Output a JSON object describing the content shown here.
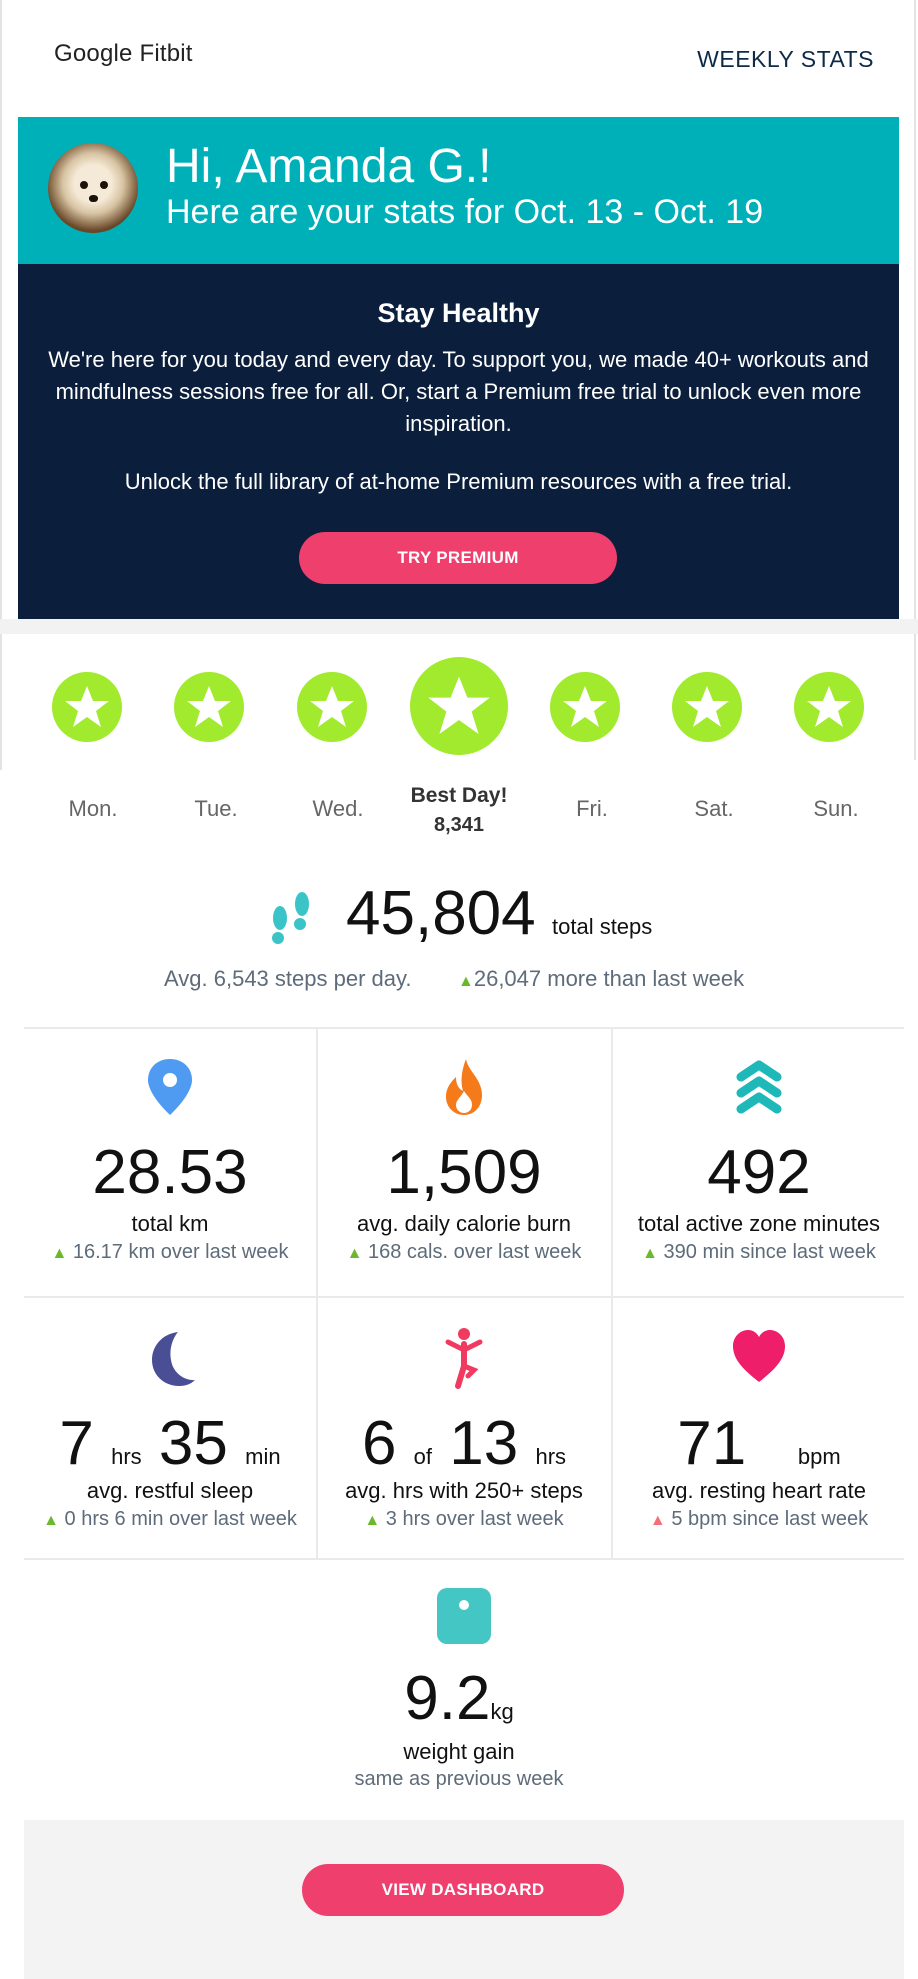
{
  "header": {
    "logo": "Google Fitbit",
    "link": "WEEKLY STATS"
  },
  "hero": {
    "greeting": "Hi, Amanda G.!",
    "subtitle": "Here are your stats for Oct. 13 - Oct. 19"
  },
  "promo": {
    "title": "Stay Healthy",
    "body": "We're here for you today and every day. To support you, we made 40+ workouts and mindfulness sessions free for all. Or, start a Premium free trial to unlock even more inspiration.",
    "body2": "Unlock the full library of at-home Premium resources with a free trial.",
    "button": "TRY PREMIUM"
  },
  "week": {
    "days": [
      "Mon.",
      "Tue.",
      "Wed.",
      "Fri.",
      "Sat.",
      "Sun."
    ],
    "best_label": "Best Day!",
    "best_value": "8,341"
  },
  "steps": {
    "total": "45,804",
    "label": "total steps",
    "avg": "Avg. 6,543 steps per day.",
    "more": "26,047 more than last week"
  },
  "stats": [
    {
      "icon": "location-pin-icon",
      "value": "28.53",
      "label": "total km",
      "delta": "16.17 km over last week"
    },
    {
      "icon": "flame-icon",
      "value": "1,509",
      "label": "avg. daily calorie burn",
      "delta": "168 cals. over last week"
    },
    {
      "icon": "active-zone-icon",
      "value": "492",
      "label": "total active zone minutes",
      "delta": "390 min since last week"
    },
    {
      "icon": "moon-icon",
      "value_a": "7",
      "unit_a": "hrs",
      "value_b": "35",
      "unit_b": "min",
      "label": "avg. restful sleep",
      "delta": "0 hrs 6 min over last week"
    },
    {
      "icon": "person-active-icon",
      "value_a": "6",
      "unit_a": "of",
      "value_b": "13",
      "unit_b": "hrs",
      "label": "avg. hrs with 250+ steps",
      "delta": "3 hrs over last week"
    },
    {
      "icon": "heart-icon",
      "value": "71",
      "unit": "bpm",
      "label": "avg. resting heart rate",
      "delta": "5 bpm since last week"
    }
  ],
  "weight": {
    "value": "9.2",
    "unit": "kg",
    "label": "weight gain",
    "sub": "same as previous week"
  },
  "footer": {
    "button": "VIEW DASHBOARD"
  },
  "colors": {
    "teal": "#00b0b9",
    "navy": "#0b1f3d",
    "pink": "#ef3f6d",
    "lime": "#a1ea2e"
  }
}
